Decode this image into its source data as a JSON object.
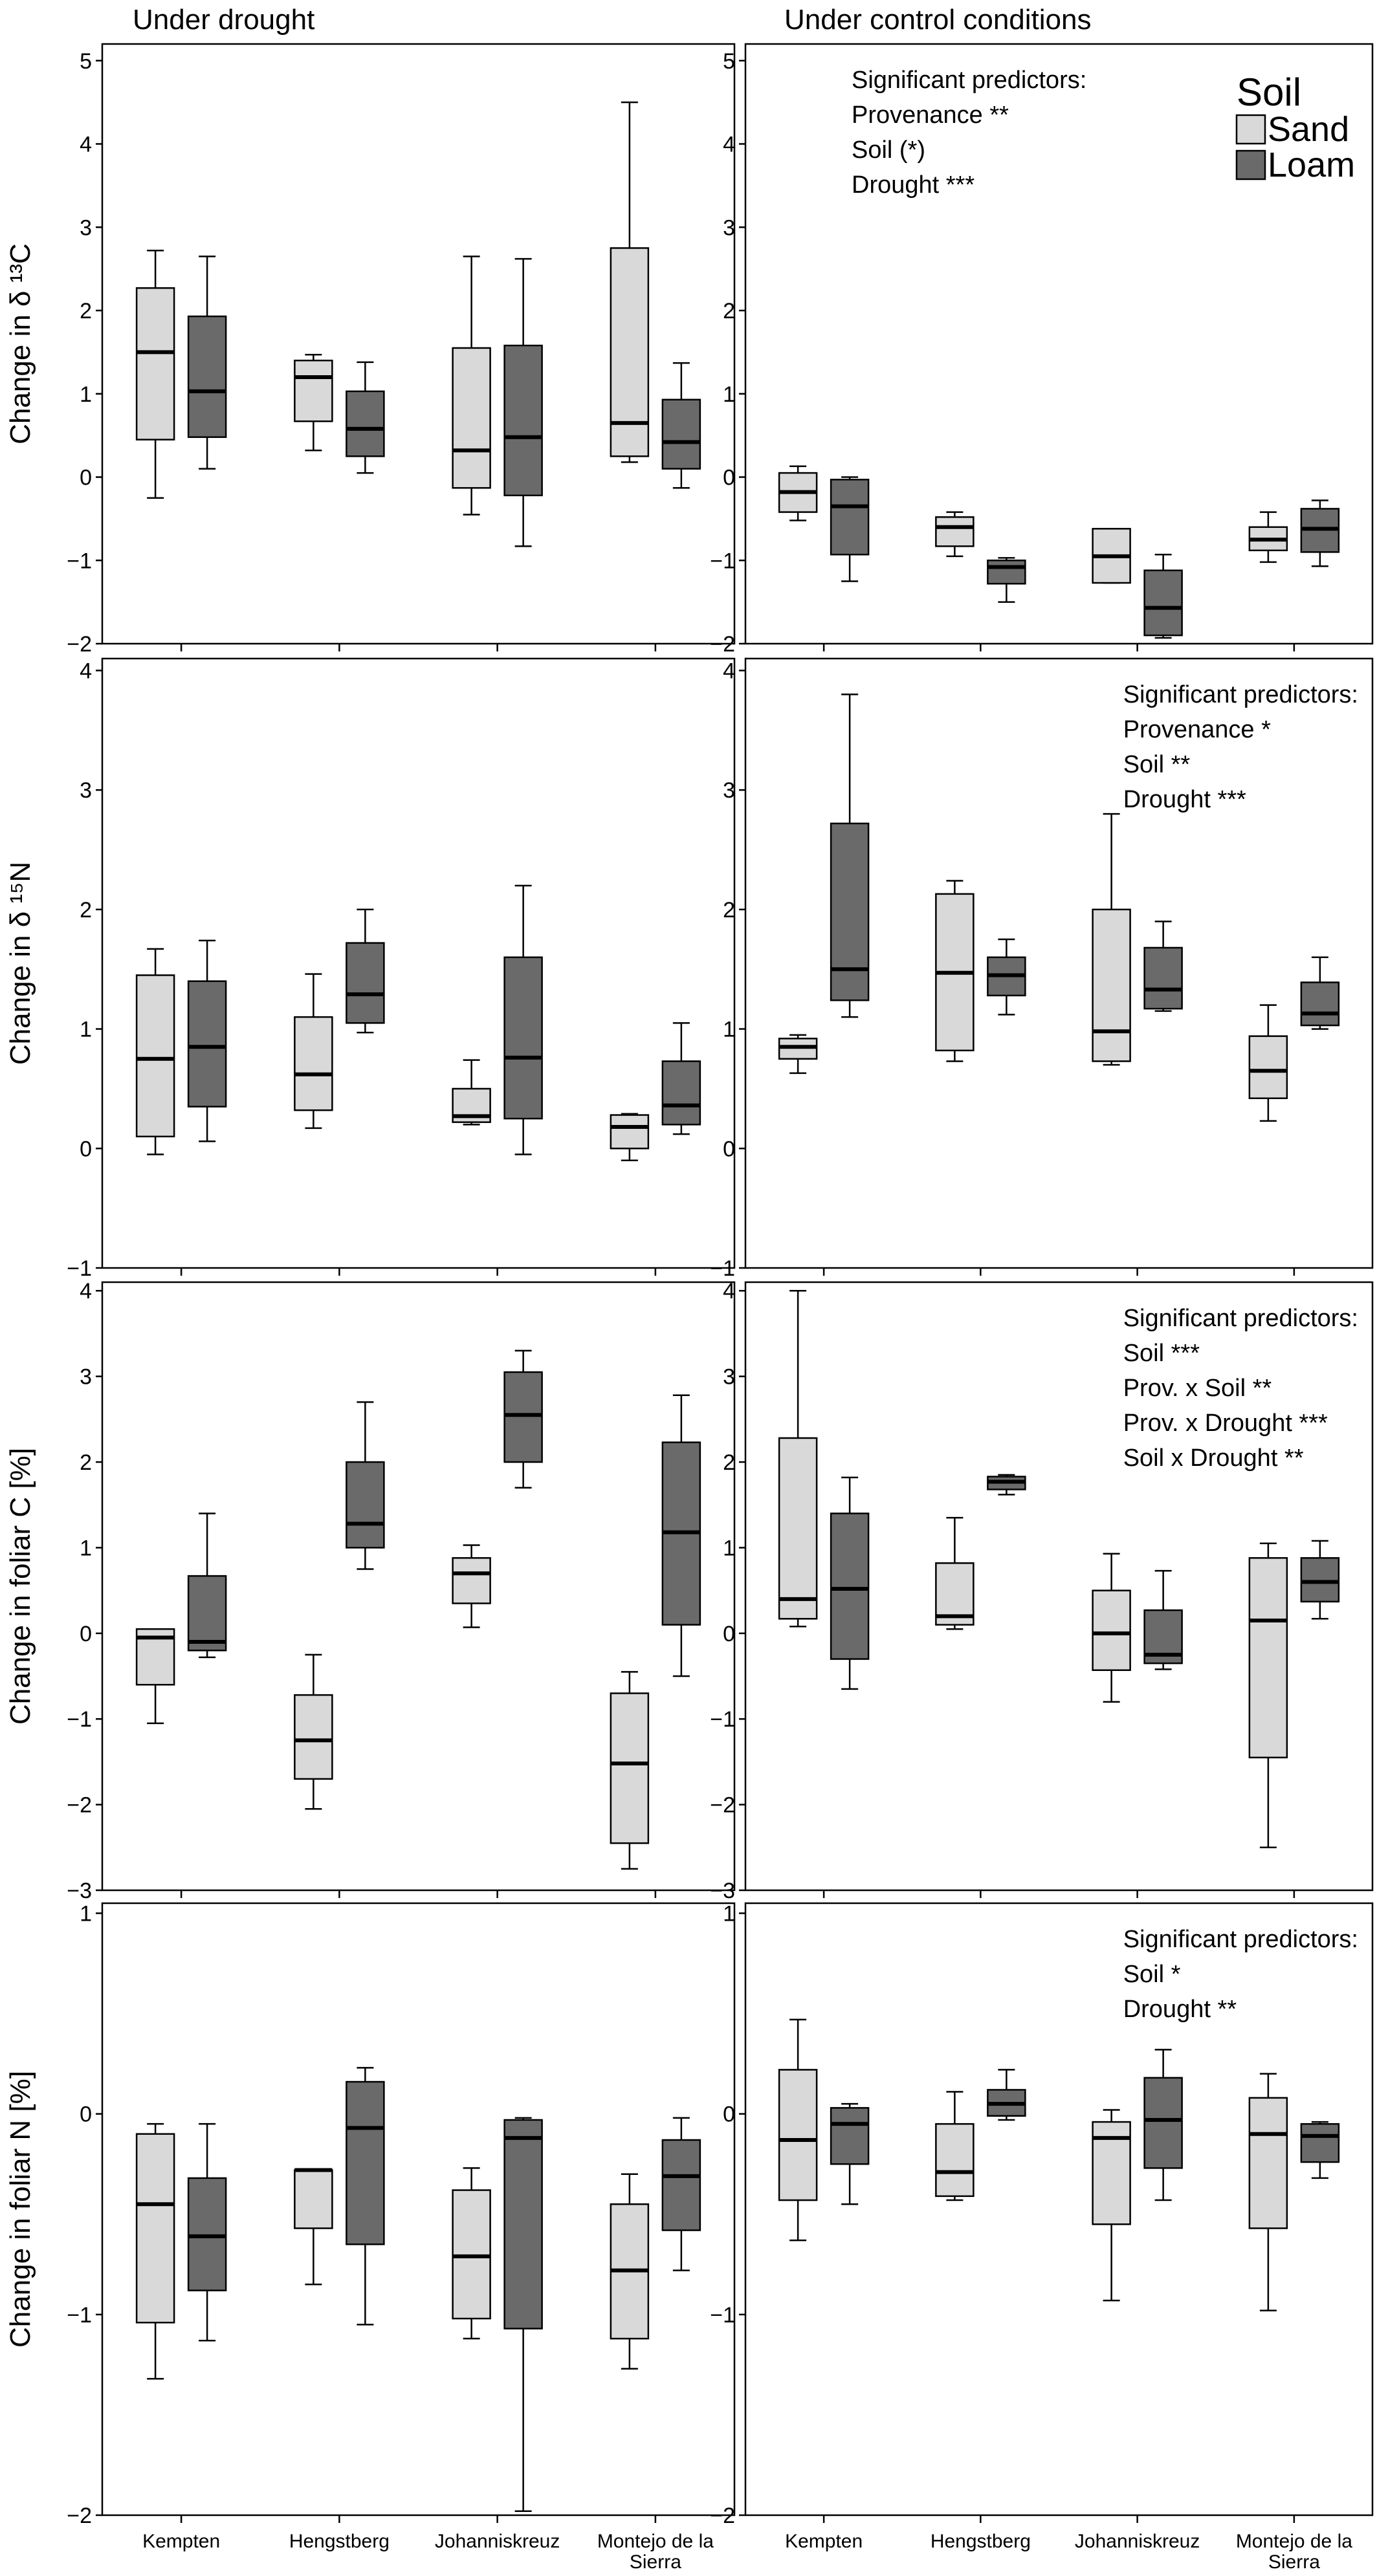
{
  "columns": [
    {
      "title": "Under drought"
    },
    {
      "title": "Under control conditions"
    }
  ],
  "provenances": [
    "Kempten",
    "Hengstberg",
    "Johanniskreuz",
    "Montejo de la Sierra"
  ],
  "colors": {
    "sand": "#d9d9d9",
    "loam": "#6a6a6a",
    "frame": "#000000"
  },
  "legend": {
    "title": "Soil",
    "items": [
      {
        "label": "Sand",
        "color": "#d9d9d9"
      },
      {
        "label": "Loam",
        "color": "#6a6a6a"
      }
    ]
  },
  "chart_data": [
    {
      "type": "box",
      "ylabel": "Change in δ ¹³C",
      "ylim": [
        -2,
        5.2
      ],
      "ticks": [
        -2,
        -1,
        0,
        1,
        2,
        3,
        4,
        5
      ],
      "tick_labels": [
        "−2",
        "−1",
        "0",
        "1",
        "2",
        "3",
        "4",
        "5"
      ],
      "panels": [
        {
          "condition": "Under drought",
          "annotation": [],
          "series": [
            {
              "name": "Sand",
              "boxes": [
                [
                  -0.25,
                  0.45,
                  1.5,
                  2.27,
                  2.72
                ],
                [
                  0.32,
                  0.67,
                  1.2,
                  1.4,
                  1.47
                ],
                [
                  -0.45,
                  -0.13,
                  0.32,
                  1.55,
                  2.65
                ],
                [
                  0.18,
                  0.25,
                  0.65,
                  2.75,
                  4.5
                ]
              ]
            },
            {
              "name": "Loam",
              "boxes": [
                [
                  0.1,
                  0.48,
                  1.03,
                  1.93,
                  2.65
                ],
                [
                  0.05,
                  0.25,
                  0.58,
                  1.03,
                  1.38
                ],
                [
                  -0.83,
                  -0.22,
                  0.48,
                  1.58,
                  2.62
                ],
                [
                  -0.13,
                  0.1,
                  0.42,
                  0.93,
                  1.37
                ]
              ]
            }
          ]
        },
        {
          "condition": "Under control conditions",
          "annotation": [
            "Significant predictors:",
            "Provenance **",
            "Soil (*)",
            "Drought ***"
          ],
          "series": [
            {
              "name": "Sand",
              "boxes": [
                [
                  -0.52,
                  -0.42,
                  -0.18,
                  0.05,
                  0.13
                ],
                [
                  -0.95,
                  -0.83,
                  -0.6,
                  -0.48,
                  -0.42
                ],
                [
                  -1.27,
                  -1.27,
                  -0.95,
                  -0.62,
                  -0.62
                ],
                [
                  -1.02,
                  -0.88,
                  -0.75,
                  -0.6,
                  -0.42
                ]
              ]
            },
            {
              "name": "Loam",
              "boxes": [
                [
                  -1.25,
                  -0.93,
                  -0.35,
                  -0.03,
                  0.0
                ],
                [
                  -1.5,
                  -1.28,
                  -1.08,
                  -1.0,
                  -0.97
                ],
                [
                  -1.93,
                  -1.9,
                  -1.57,
                  -1.12,
                  -0.93
                ],
                [
                  -1.07,
                  -0.9,
                  -0.62,
                  -0.38,
                  -0.28
                ]
              ]
            }
          ]
        }
      ]
    },
    {
      "type": "box",
      "ylabel": "Change in δ ¹⁵N",
      "ylim": [
        -1,
        4.1
      ],
      "ticks": [
        -1,
        0,
        1,
        2,
        3,
        4
      ],
      "tick_labels": [
        "−1",
        "0",
        "1",
        "2",
        "3",
        "4"
      ],
      "panels": [
        {
          "condition": "Under drought",
          "annotation": [],
          "series": [
            {
              "name": "Sand",
              "boxes": [
                [
                  -0.05,
                  0.1,
                  0.75,
                  1.45,
                  1.67
                ],
                [
                  0.17,
                  0.32,
                  0.62,
                  1.1,
                  1.46
                ],
                [
                  0.2,
                  0.22,
                  0.27,
                  0.5,
                  0.74
                ],
                [
                  -0.1,
                  0.0,
                  0.18,
                  0.28,
                  0.29
                ]
              ]
            },
            {
              "name": "Loam",
              "boxes": [
                [
                  0.06,
                  0.35,
                  0.85,
                  1.4,
                  1.74
                ],
                [
                  0.97,
                  1.05,
                  1.29,
                  1.72,
                  2.0
                ],
                [
                  -0.05,
                  0.25,
                  0.76,
                  1.6,
                  2.2
                ],
                [
                  0.12,
                  0.2,
                  0.36,
                  0.73,
                  1.05
                ]
              ]
            }
          ]
        },
        {
          "condition": "Under control conditions",
          "annotation": [
            "Significant predictors:",
            "Provenance *",
            "Soil **",
            "Drought ***"
          ],
          "series": [
            {
              "name": "Sand",
              "boxes": [
                [
                  0.63,
                  0.75,
                  0.85,
                  0.92,
                  0.95
                ],
                [
                  0.73,
                  0.82,
                  1.47,
                  2.13,
                  2.24
                ],
                [
                  0.7,
                  0.73,
                  0.98,
                  2.0,
                  2.8
                ],
                [
                  0.23,
                  0.42,
                  0.65,
                  0.94,
                  1.2
                ]
              ]
            },
            {
              "name": "Loam",
              "boxes": [
                [
                  1.1,
                  1.24,
                  1.5,
                  2.72,
                  3.8
                ],
                [
                  1.12,
                  1.28,
                  1.45,
                  1.6,
                  1.75
                ],
                [
                  1.15,
                  1.17,
                  1.33,
                  1.68,
                  1.9
                ],
                [
                  1.0,
                  1.03,
                  1.13,
                  1.39,
                  1.6
                ]
              ]
            }
          ]
        }
      ]
    },
    {
      "type": "box",
      "ylabel": "Change in foliar C [%]",
      "ylim": [
        -3,
        4.1
      ],
      "ticks": [
        -3,
        -2,
        -1,
        0,
        1,
        2,
        3,
        4
      ],
      "tick_labels": [
        "−3",
        "−2",
        "−1",
        "0",
        "1",
        "2",
        "3",
        "4"
      ],
      "panels": [
        {
          "condition": "Under drought",
          "annotation": [],
          "series": [
            {
              "name": "Sand",
              "boxes": [
                [
                  -1.05,
                  -0.6,
                  -0.05,
                  0.05,
                  0.05
                ],
                [
                  -2.05,
                  -1.7,
                  -1.25,
                  -0.72,
                  -0.25
                ],
                [
                  0.07,
                  0.35,
                  0.7,
                  0.88,
                  1.03
                ],
                [
                  -2.75,
                  -2.45,
                  -1.52,
                  -0.7,
                  -0.45
                ]
              ]
            },
            {
              "name": "Loam",
              "boxes": [
                [
                  -0.28,
                  -0.2,
                  -0.1,
                  0.67,
                  1.4
                ],
                [
                  0.75,
                  1.0,
                  1.28,
                  2.0,
                  2.7
                ],
                [
                  1.7,
                  2.0,
                  2.55,
                  3.05,
                  3.3
                ],
                [
                  -0.5,
                  0.1,
                  1.18,
                  2.23,
                  2.78
                ]
              ]
            }
          ]
        },
        {
          "condition": "Under control conditions",
          "annotation": [
            "Significant predictors:",
            "Soil ***",
            "Prov. x Soil **",
            "Prov. x Drought ***",
            "Soil x Drought **"
          ],
          "series": [
            {
              "name": "Sand",
              "boxes": [
                [
                  0.08,
                  0.17,
                  0.4,
                  2.28,
                  4.0
                ],
                [
                  0.05,
                  0.1,
                  0.2,
                  0.82,
                  1.35
                ],
                [
                  -0.8,
                  -0.43,
                  0.0,
                  0.5,
                  0.93
                ],
                [
                  -2.5,
                  -1.45,
                  0.15,
                  0.88,
                  1.05
                ]
              ]
            },
            {
              "name": "Loam",
              "boxes": [
                [
                  -0.65,
                  -0.3,
                  0.52,
                  1.4,
                  1.82
                ],
                [
                  1.62,
                  1.68,
                  1.77,
                  1.83,
                  1.85
                ],
                [
                  -0.42,
                  -0.35,
                  -0.25,
                  0.27,
                  0.73
                ],
                [
                  0.17,
                  0.37,
                  0.6,
                  0.88,
                  1.08
                ]
              ]
            }
          ]
        }
      ]
    },
    {
      "type": "box",
      "ylabel": "Change in foliar N [%]",
      "ylim": [
        -2,
        1.05
      ],
      "ticks": [
        -2,
        -1,
        0,
        1
      ],
      "tick_labels": [
        "−2",
        "−1",
        "0",
        "1"
      ],
      "panels": [
        {
          "condition": "Under drought",
          "annotation": [],
          "series": [
            {
              "name": "Sand",
              "boxes": [
                [
                  -1.32,
                  -1.04,
                  -0.45,
                  -0.1,
                  -0.05
                ],
                [
                  -0.85,
                  -0.57,
                  -0.28,
                  -0.28,
                  -0.28
                ],
                [
                  -1.12,
                  -1.02,
                  -0.71,
                  -0.38,
                  -0.27
                ],
                [
                  -1.27,
                  -1.12,
                  -0.78,
                  -0.45,
                  -0.3
                ]
              ]
            },
            {
              "name": "Loam",
              "boxes": [
                [
                  -1.13,
                  -0.88,
                  -0.61,
                  -0.32,
                  -0.05
                ],
                [
                  -1.05,
                  -0.65,
                  -0.07,
                  0.16,
                  0.23
                ],
                [
                  -1.98,
                  -1.07,
                  -0.12,
                  -0.03,
                  -0.02
                ],
                [
                  -0.78,
                  -0.58,
                  -0.31,
                  -0.13,
                  -0.02
                ]
              ]
            }
          ]
        },
        {
          "condition": "Under control conditions",
          "annotation": [
            "Significant predictors:",
            "Soil *",
            "Drought **"
          ],
          "series": [
            {
              "name": "Sand",
              "boxes": [
                [
                  -0.63,
                  -0.43,
                  -0.13,
                  0.22,
                  0.47
                ],
                [
                  -0.43,
                  -0.41,
                  -0.29,
                  -0.05,
                  0.11
                ],
                [
                  -0.93,
                  -0.55,
                  -0.12,
                  -0.04,
                  0.02
                ],
                [
                  -0.98,
                  -0.57,
                  -0.1,
                  0.08,
                  0.2
                ]
              ]
            },
            {
              "name": "Loam",
              "boxes": [
                [
                  -0.45,
                  -0.25,
                  -0.05,
                  0.03,
                  0.05
                ],
                [
                  -0.03,
                  -0.01,
                  0.05,
                  0.12,
                  0.22
                ],
                [
                  -0.43,
                  -0.27,
                  -0.03,
                  0.18,
                  0.32
                ],
                [
                  -0.32,
                  -0.24,
                  -0.11,
                  -0.05,
                  -0.04
                ]
              ]
            }
          ]
        }
      ]
    }
  ]
}
